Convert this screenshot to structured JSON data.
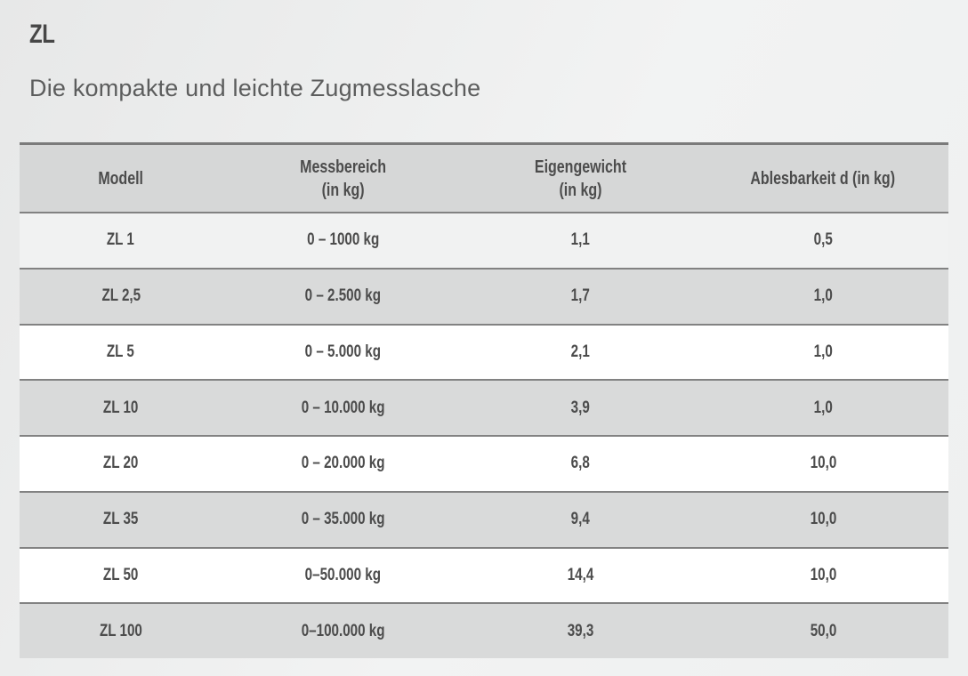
{
  "header": {
    "title": "ZL",
    "subtitle": "Die kompakte und leichte Zugmesslasche"
  },
  "table": {
    "columns": [
      "Modell",
      "Messbereich\n(in kg)",
      "Eigengewicht\n(in kg)",
      "Ablesbarkeit d (in kg)"
    ],
    "rows": [
      {
        "modell": "ZL 1",
        "messbereich": "0 – 1000 kg",
        "eigengewicht": "1,1",
        "ablesbarkeit": "0,5"
      },
      {
        "modell": "ZL 2,5",
        "messbereich": "0 – 2.500 kg",
        "eigengewicht": "1,7",
        "ablesbarkeit": "1,0"
      },
      {
        "modell": "ZL 5",
        "messbereich": "0 – 5.000 kg",
        "eigengewicht": "2,1",
        "ablesbarkeit": "1,0"
      },
      {
        "modell": "ZL 10",
        "messbereich": "0 – 10.000 kg",
        "eigengewicht": "3,9",
        "ablesbarkeit": "1,0"
      },
      {
        "modell": "ZL 20",
        "messbereich": "0 – 20.000 kg",
        "eigengewicht": "6,8",
        "ablesbarkeit": "10,0"
      },
      {
        "modell": "ZL 35",
        "messbereich": "0 – 35.000 kg",
        "eigengewicht": "9,4",
        "ablesbarkeit": "10,0"
      },
      {
        "modell": "ZL 50",
        "messbereich": "0–50.000 kg",
        "eigengewicht": "14,4",
        "ablesbarkeit": "10,0"
      },
      {
        "modell": "ZL 100",
        "messbereich": "0–100.000 kg",
        "eigengewicht": "39,3",
        "ablesbarkeit": "50,0"
      }
    ]
  },
  "colors": {
    "header_row_bg": "#d6d7d7",
    "stripe_row_bg": "#d9dada",
    "table_border": "#7b7b7b",
    "text": "#4c4c4c"
  }
}
